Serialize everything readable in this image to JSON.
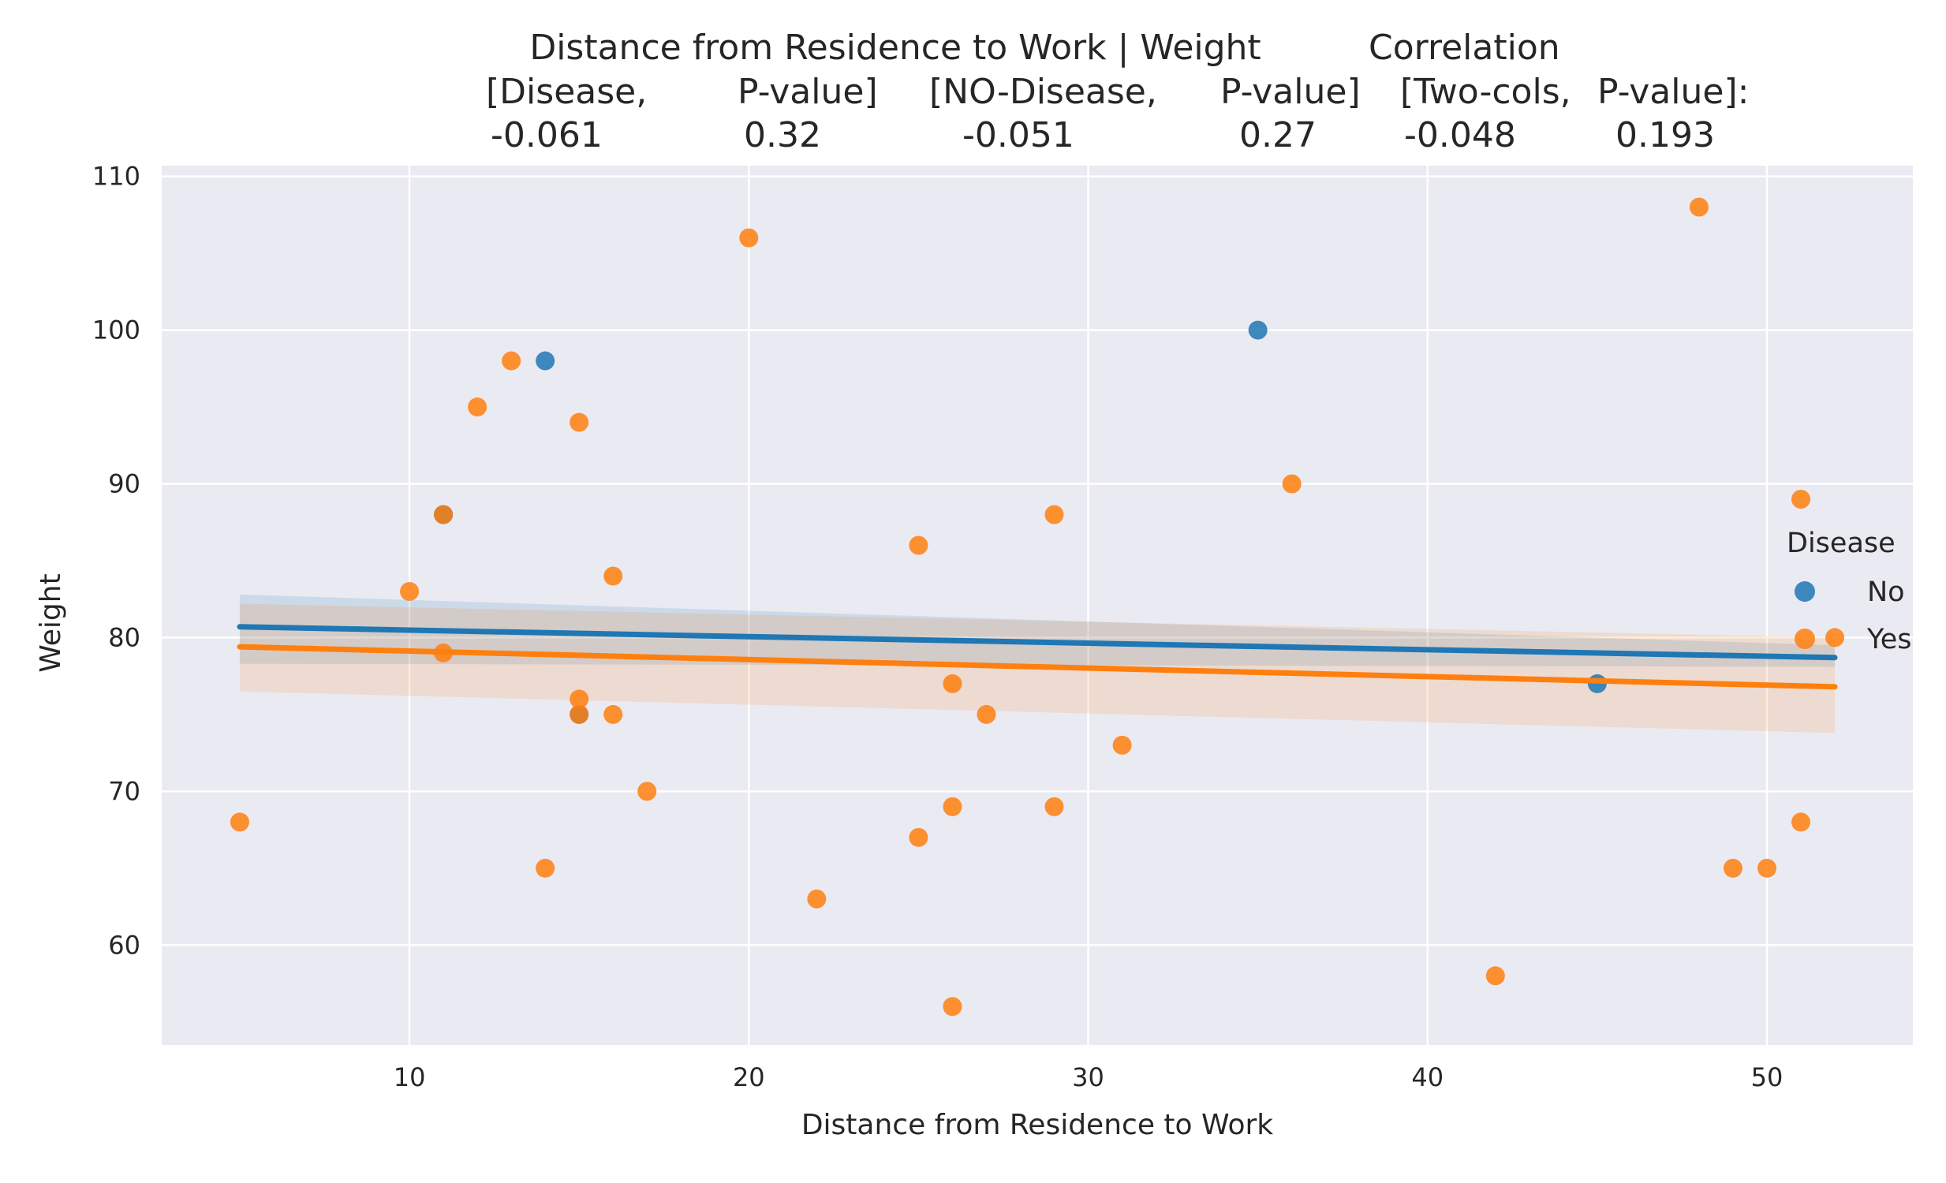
{
  "chart_data": {
    "type": "scatter",
    "title_lines": [
      "Distance from Residence to Work | Weight    Correlation",
      "[Disease,        P-value]   [NO-Disease,     P-value]   [Two-cols,  P-value]:",
      "-0.061              0.32          -0.051                0.27       -0.048          0.193"
    ],
    "title_parts": [
      [
        "Distance from Residence to Work | Weight",
        "Correlation"
      ],
      [
        "[Disease,",
        "P-value]",
        "[NO-Disease,",
        "P-value]",
        "[Two-cols,",
        "P-value]:"
      ],
      [
        "-0.061",
        "0.32",
        "-0.051",
        "0.27",
        "-0.048",
        "0.193"
      ]
    ],
    "xlabel": "Distance from Residence to Work",
    "ylabel": "Weight",
    "xlim": [
      2.7,
      54.3
    ],
    "ylim": [
      53.5,
      110.7
    ],
    "xticks": [
      10,
      20,
      30,
      40,
      50
    ],
    "yticks": [
      60,
      70,
      80,
      90,
      100,
      110
    ],
    "grid": true,
    "background": "#eaeaf2",
    "legend": {
      "title": "Disease",
      "entries": [
        "No",
        "Yes"
      ],
      "placement": "right"
    },
    "series": [
      {
        "name": "No",
        "color": "#1f77b4",
        "points": [
          [
            14,
            98
          ],
          [
            35,
            100
          ],
          [
            45,
            77
          ],
          [
            15,
            75
          ],
          [
            11,
            88
          ]
        ],
        "fit": {
          "x": [
            5,
            52
          ],
          "y": [
            80.7,
            78.7
          ]
        },
        "ci_band": {
          "x": [
            5,
            52
          ],
          "lower": [
            78.3,
            78.1
          ],
          "upper": [
            82.8,
            79.5
          ]
        }
      },
      {
        "name": "Yes",
        "color": "#ff7f0e",
        "points": [
          [
            5,
            68
          ],
          [
            10,
            83
          ],
          [
            11,
            88
          ],
          [
            11,
            79
          ],
          [
            12,
            95
          ],
          [
            13,
            98
          ],
          [
            14,
            65
          ],
          [
            15,
            94
          ],
          [
            15,
            76
          ],
          [
            15,
            75
          ],
          [
            16,
            84
          ],
          [
            16,
            75
          ],
          [
            17,
            70
          ],
          [
            20,
            106
          ],
          [
            22,
            63
          ],
          [
            25,
            86
          ],
          [
            25,
            67
          ],
          [
            26,
            77
          ],
          [
            26,
            69
          ],
          [
            26,
            56
          ],
          [
            27,
            75
          ],
          [
            29,
            88
          ],
          [
            29,
            69
          ],
          [
            31,
            73
          ],
          [
            36,
            90
          ],
          [
            42,
            58
          ],
          [
            48,
            108
          ],
          [
            49,
            65
          ],
          [
            50,
            65
          ],
          [
            51,
            89
          ],
          [
            51,
            68
          ],
          [
            52,
            80
          ]
        ],
        "fit": {
          "x": [
            5,
            52
          ],
          "y": [
            79.4,
            76.8
          ]
        },
        "ci_band": {
          "x": [
            5,
            52
          ],
          "lower": [
            76.5,
            73.8
          ],
          "upper": [
            82.2,
            80.0
          ]
        }
      }
    ]
  }
}
